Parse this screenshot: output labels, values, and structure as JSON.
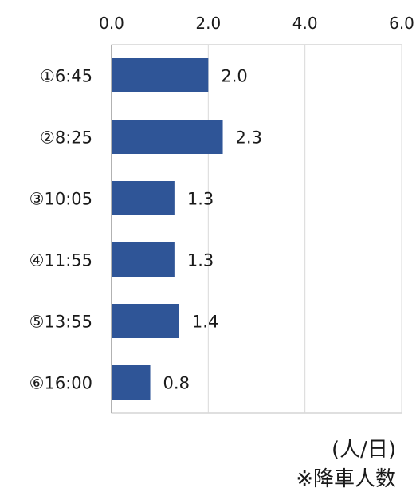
{
  "chart_data": {
    "type": "bar",
    "orientation": "horizontal",
    "categories": [
      "①6:45",
      "②8:25",
      "③10:05",
      "④11:55",
      "⑤13:55",
      "⑥16:00"
    ],
    "values": [
      2.0,
      2.3,
      1.3,
      1.3,
      1.4,
      0.8
    ],
    "data_labels": [
      "2.0",
      "2.3",
      "1.3",
      "1.3",
      "1.4",
      "0.8"
    ],
    "x_ticks": [
      "0.0",
      "2.0",
      "4.0",
      "6.0"
    ],
    "xlim": [
      0,
      6
    ],
    "x_axis_position": "top",
    "grid": "vertical",
    "bar_color": "#2f5597",
    "unit": "(人/日)",
    "note": "※降車人数"
  }
}
